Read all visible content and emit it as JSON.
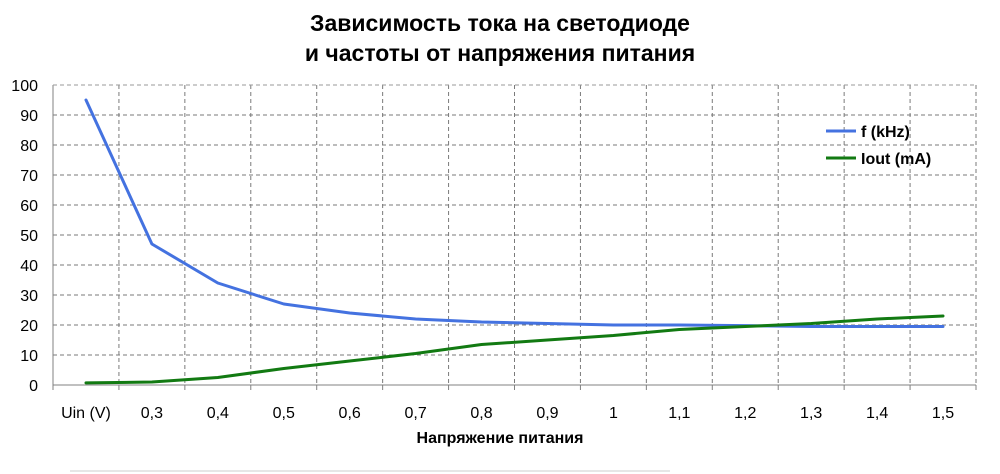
{
  "chart_data": {
    "type": "line",
    "title": [
      "Зависимость тока на светодиоде",
      "и частоты от напряжения питания"
    ],
    "xlabel": "Напряжение питания",
    "ylabel": "",
    "categories": [
      "Uin (V)",
      "0,3",
      "0,4",
      "0,5",
      "0,6",
      "0,7",
      "0,8",
      "0,9",
      "1",
      "1,1",
      "1,2",
      "1,3",
      "1,4",
      "1,5"
    ],
    "ylim": [
      0,
      100
    ],
    "yticks": [
      0,
      10,
      20,
      30,
      40,
      50,
      60,
      70,
      80,
      90,
      100
    ],
    "grid": "dashed",
    "legend_position": "top-right",
    "series": [
      {
        "name": "f (kHz)",
        "color": "#4472e0",
        "values": [
          95,
          47,
          34,
          27,
          24,
          22,
          21,
          20.5,
          20,
          20,
          19.8,
          19.5,
          19.5,
          19.5
        ]
      },
      {
        "name": "Iout (mA)",
        "color": "#127a12",
        "values": [
          0.7,
          1,
          2.5,
          5.5,
          8,
          10.5,
          13.5,
          15,
          16.5,
          18.5,
          19.5,
          20.5,
          22,
          23
        ]
      }
    ]
  }
}
